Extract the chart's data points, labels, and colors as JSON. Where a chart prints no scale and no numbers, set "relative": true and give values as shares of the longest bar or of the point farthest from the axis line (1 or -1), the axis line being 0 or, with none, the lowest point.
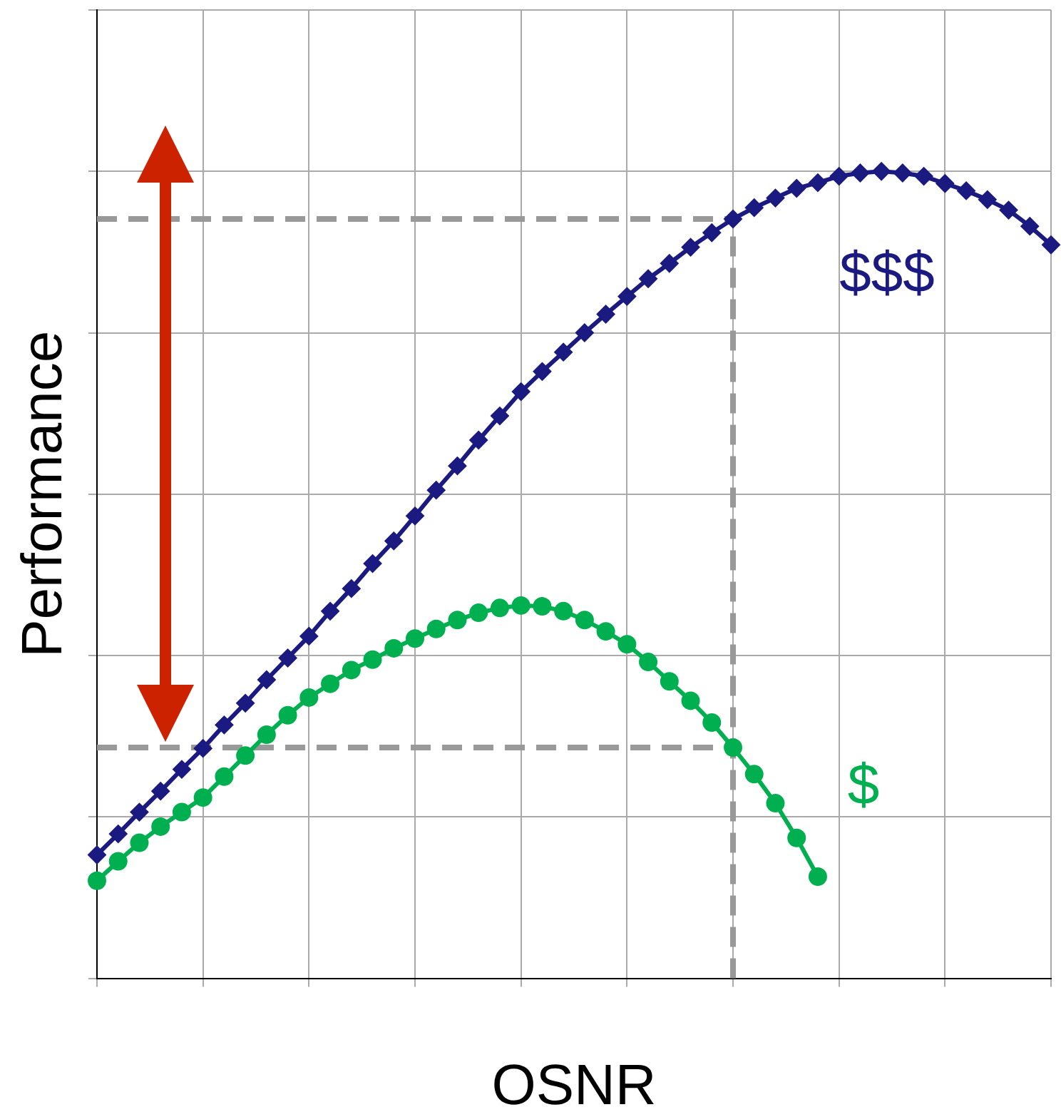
{
  "chart_data": {
    "type": "line",
    "marker": "circle",
    "xlabel": "OSNR",
    "ylabel": "Performance",
    "relative": true,
    "grid": true,
    "categories": [
      null,
      null,
      null,
      null,
      null,
      null,
      null,
      null,
      null,
      null,
      null,
      null,
      null,
      null,
      null,
      null,
      null,
      null,
      null,
      null,
      null,
      null,
      null,
      null,
      null,
      null,
      null,
      null,
      null,
      null,
      null,
      null,
      null,
      null,
      null,
      null,
      null,
      null,
      null,
      null,
      null,
      null,
      null,
      null,
      null,
      null
    ],
    "series": [
      {
        "name": "$$$",
        "color": "#1a1a80",
        "marker": "diamond",
        "values": [
          0.153,
          0.179,
          0.206,
          0.232,
          0.259,
          0.285,
          0.314,
          0.341,
          0.37,
          0.397,
          0.424,
          0.455,
          0.483,
          0.514,
          0.542,
          0.573,
          0.605,
          0.635,
          0.667,
          0.697,
          0.727,
          0.752,
          0.776,
          0.8,
          0.823,
          0.845,
          0.867,
          0.886,
          0.906,
          0.924,
          0.941,
          0.955,
          0.967,
          0.979,
          0.986,
          0.994,
          0.998,
          1,
          0.998,
          0.994,
          0.985,
          0.976,
          0.965,
          0.952,
          0.932,
          0.909
        ]
      },
      {
        "name": "$",
        "color": "#00b050",
        "values": [
          0.121,
          0.145,
          0.168,
          0.188,
          0.206,
          0.224,
          0.25,
          0.276,
          0.302,
          0.326,
          0.348,
          0.365,
          0.382,
          0.395,
          0.409,
          0.421,
          0.433,
          0.444,
          0.453,
          0.459,
          0.462,
          0.461,
          0.455,
          0.444,
          0.43,
          0.414,
          0.392,
          0.368,
          0.344,
          0.317,
          0.286,
          0.253,
          0.217,
          0.174,
          0.126,
          null,
          null,
          null,
          null,
          null,
          null,
          null,
          null,
          null,
          null,
          null
        ]
      }
    ],
    "ref_lines": [
      {
        "axis": "y",
        "value": 0.941,
        "color": "#999999",
        "line_style": "dashed"
      },
      {
        "axis": "y",
        "value": 0.286,
        "color": "#999999",
        "line_style": "dashed"
      }
    ]
  }
}
